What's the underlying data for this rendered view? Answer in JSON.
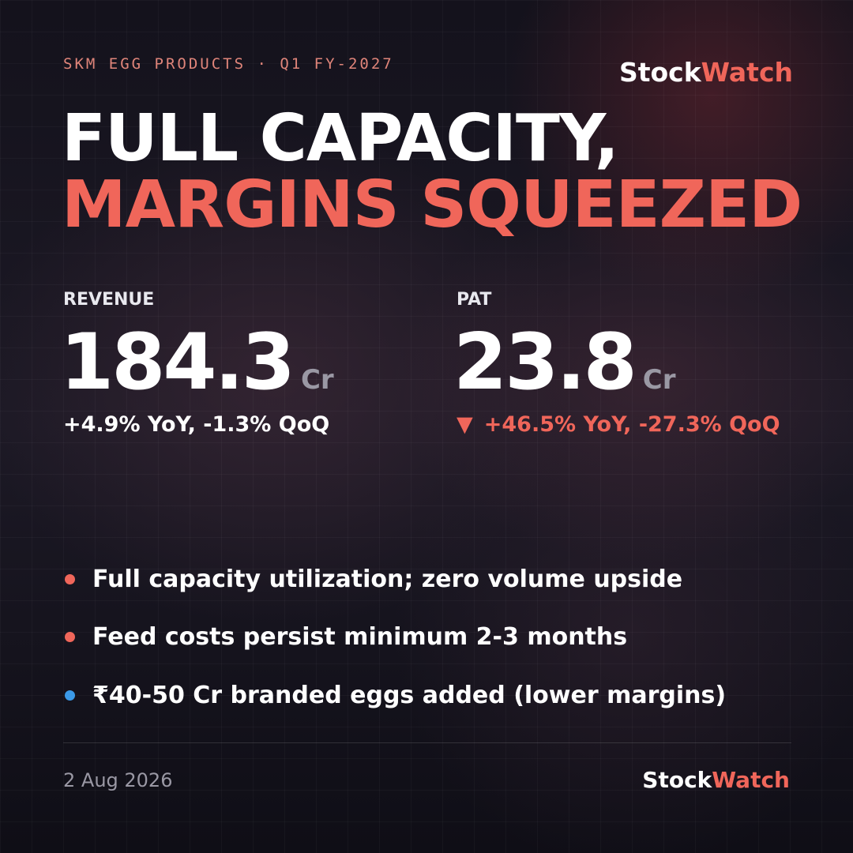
{
  "header": {
    "kicker": "SKM EGG PRODUCTS · Q1 FY-2027",
    "brand": {
      "first": "Stock",
      "second": "Watch"
    }
  },
  "title": {
    "line1": "FULL CAPACITY,",
    "line2": "MARGINS SQUEEZED"
  },
  "metrics": [
    {
      "label": "REVENUE",
      "value": "184.3",
      "unit": "Cr",
      "change": "+4.9% YoY, -1.3% QoQ",
      "color": "#ffffff"
    },
    {
      "label": "PAT",
      "value": "23.8",
      "unit": "Cr",
      "arrow": "▼",
      "change": "+46.5% YoY, -27.3% QoQ",
      "color": "#f0665a"
    }
  ],
  "bullets": [
    {
      "text": "Full capacity utilization; zero volume upside",
      "color": "#f0665a"
    },
    {
      "text": "Feed costs persist minimum 2-3 months",
      "color": "#f0665a"
    },
    {
      "text": "₹40-50 Cr branded eggs added (lower margins)",
      "color": "#3b9ae8"
    }
  ],
  "footer": {
    "date": "2 Aug 2026",
    "brand": {
      "first": "Stock",
      "second": "Watch"
    }
  }
}
